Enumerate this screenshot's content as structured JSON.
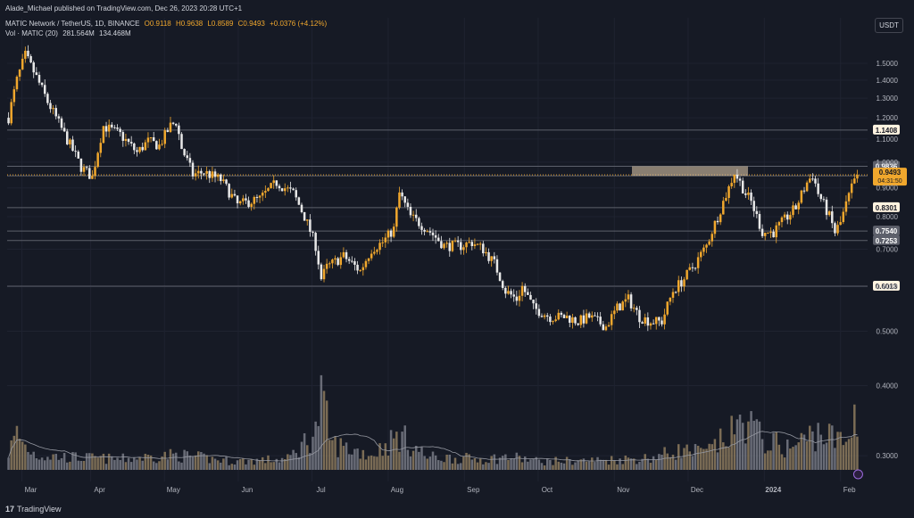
{
  "header": {
    "published": "Alade_Michael published on TradingView.com, Dec 26, 2023 20:28 UTC+1",
    "symbol": "MATIC Network / TetherUS, 1D, BINANCE",
    "open": "O0.9118",
    "high": "H0.9638",
    "low": "L0.8589",
    "close": "C0.9493",
    "change": "+0.0376 (+4.12%)",
    "volume_label": "Vol · MATIC (20)",
    "volume_value": "281.564M",
    "volume_ma": "134.468M",
    "currency": "USDT"
  },
  "footer": {
    "brand": "TradingView",
    "logo": "17"
  },
  "colors": {
    "background": "#161a25",
    "up": "#f0a72d",
    "down": "#e8e8e8",
    "grid": "#1f2330",
    "level": "#5d606b",
    "resistance_zone": "#c8b49a"
  },
  "chart_data": {
    "type": "candlestick",
    "series": [
      {
        "name": "MATIC Network / TetherUS, 1D, BINANCE"
      }
    ],
    "x_axis": {
      "labels": [
        "Mar",
        "Apr",
        "May",
        "Jun",
        "Jul",
        "Aug",
        "Sep",
        "Oct",
        "Nov",
        "Dec",
        "2024",
        "Feb"
      ]
    },
    "y_axis": {
      "scale": "log",
      "ticks": [
        "1.5000",
        "1.4000",
        "1.3000",
        "1.2000",
        "1.1000",
        "1.0000",
        "0.9000",
        "0.8000",
        "0.7000",
        "0.6000",
        "0.5000",
        "0.4000",
        "0.3000"
      ],
      "range": [
        0.27,
        1.62
      ]
    },
    "levels": [
      {
        "value": 1.1408,
        "label": "1.1408"
      },
      {
        "value": 0.9836,
        "label": "0.9836"
      },
      {
        "value": 0.9456,
        "label": "0.9456"
      },
      {
        "value": 0.8301,
        "label": "0.8301"
      },
      {
        "value": 0.754,
        "label": "0.7540"
      },
      {
        "value": 0.7253,
        "label": "0.7253"
      },
      {
        "value": 0.6013,
        "label": "0.6013"
      }
    ],
    "last_price": {
      "value": 0.9493,
      "label": "0.9493",
      "countdown": "04:31:50"
    },
    "resistance_zone": [
      0.9456,
      0.9836
    ],
    "price_path": [
      [
        0,
        1.2
      ],
      [
        3,
        1.4
      ],
      [
        6,
        1.55
      ],
      [
        9,
        1.45
      ],
      [
        14,
        1.28
      ],
      [
        20,
        1.12
      ],
      [
        26,
        0.98
      ],
      [
        30,
        0.94
      ],
      [
        34,
        1.16
      ],
      [
        40,
        1.12
      ],
      [
        46,
        1.04
      ],
      [
        50,
        1.09
      ],
      [
        54,
        1.07
      ],
      [
        58,
        1.16
      ],
      [
        60,
        1.18
      ],
      [
        62,
        1.06
      ],
      [
        66,
        0.95
      ],
      [
        70,
        0.96
      ],
      [
        76,
        0.93
      ],
      [
        82,
        0.84
      ],
      [
        90,
        0.86
      ],
      [
        96,
        0.92
      ],
      [
        102,
        0.88
      ],
      [
        106,
        0.8
      ],
      [
        110,
        0.71
      ],
      [
        112,
        0.62
      ],
      [
        114,
        0.65
      ],
      [
        120,
        0.68
      ],
      [
        126,
        0.64
      ],
      [
        130,
        0.7
      ],
      [
        134,
        0.72
      ],
      [
        138,
        0.76
      ],
      [
        140,
        0.88
      ],
      [
        144,
        0.8
      ],
      [
        150,
        0.76
      ],
      [
        156,
        0.71
      ],
      [
        162,
        0.71
      ],
      [
        166,
        0.72
      ],
      [
        170,
        0.7
      ],
      [
        174,
        0.66
      ],
      [
        178,
        0.59
      ],
      [
        182,
        0.57
      ],
      [
        184,
        0.6
      ],
      [
        188,
        0.55
      ],
      [
        194,
        0.53
      ],
      [
        200,
        0.53
      ],
      [
        204,
        0.52
      ],
      [
        208,
        0.53
      ],
      [
        214,
        0.51
      ],
      [
        218,
        0.55
      ],
      [
        222,
        0.57
      ],
      [
        226,
        0.53
      ],
      [
        230,
        0.52
      ],
      [
        234,
        0.52
      ],
      [
        238,
        0.59
      ],
      [
        242,
        0.62
      ],
      [
        246,
        0.66
      ],
      [
        250,
        0.71
      ],
      [
        254,
        0.8
      ],
      [
        258,
        0.9
      ],
      [
        260,
        0.96
      ],
      [
        264,
        0.88
      ],
      [
        266,
        0.85
      ],
      [
        270,
        0.75
      ],
      [
        274,
        0.75
      ],
      [
        278,
        0.79
      ],
      [
        282,
        0.83
      ],
      [
        286,
        0.92
      ],
      [
        288,
        0.95
      ],
      [
        290,
        0.88
      ],
      [
        294,
        0.8
      ],
      [
        296,
        0.75
      ],
      [
        298,
        0.78
      ],
      [
        300,
        0.84
      ],
      [
        302,
        0.9
      ],
      [
        304,
        0.9493
      ]
    ],
    "volume_path": [
      [
        0,
        0.4
      ],
      [
        3,
        0.85
      ],
      [
        6,
        0.55
      ],
      [
        10,
        0.35
      ],
      [
        20,
        0.3
      ],
      [
        40,
        0.25
      ],
      [
        60,
        0.35
      ],
      [
        80,
        0.2
      ],
      [
        100,
        0.25
      ],
      [
        110,
        0.9
      ],
      [
        112,
        1.6
      ],
      [
        116,
        0.6
      ],
      [
        130,
        0.35
      ],
      [
        140,
        0.8
      ],
      [
        150,
        0.3
      ],
      [
        170,
        0.25
      ],
      [
        180,
        0.3
      ],
      [
        190,
        0.2
      ],
      [
        210,
        0.22
      ],
      [
        230,
        0.28
      ],
      [
        240,
        0.45
      ],
      [
        250,
        0.4
      ],
      [
        260,
        0.9
      ],
      [
        264,
        1.2
      ],
      [
        270,
        0.7
      ],
      [
        280,
        0.5
      ],
      [
        290,
        0.9
      ],
      [
        300,
        0.6
      ],
      [
        304,
        1.5
      ]
    ]
  }
}
